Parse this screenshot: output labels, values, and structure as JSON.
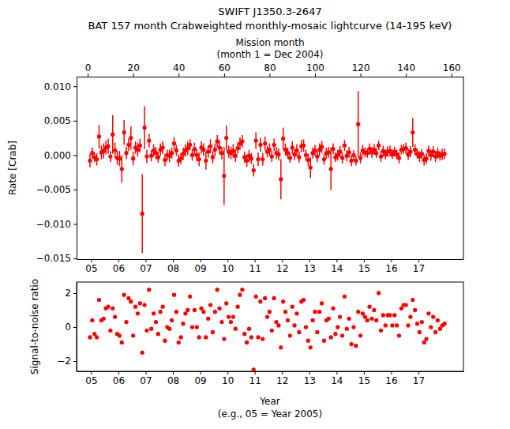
{
  "chart_data": [
    {
      "type": "scatter",
      "title": "SWIFT J1350.3-2647",
      "subtitle": "BAT 157 month Crabweighted monthly-mosaic lightcurve (14-195 keV)",
      "xlabel": "Mission month",
      "xlabel_note": "(month 1 = Dec 2004)",
      "ylabel": "Rate [Crab]",
      "color": "#ff0000",
      "marker": "circle",
      "xlim": [
        -4.9,
        165.3
      ],
      "xticks": [
        0,
        20,
        40,
        60,
        80,
        100,
        120,
        140,
        160
      ],
      "x2lim": [
        4.467,
        18.65
      ],
      "x2ticks": [
        {
          "value": 5,
          "label": "05"
        },
        {
          "value": 6,
          "label": "06"
        },
        {
          "value": 7,
          "label": "07"
        },
        {
          "value": 8,
          "label": "08"
        },
        {
          "value": 9,
          "label": "09"
        },
        {
          "value": 10,
          "label": "10"
        },
        {
          "value": 11,
          "label": "11"
        },
        {
          "value": 12,
          "label": "12"
        },
        {
          "value": 13,
          "label": "13"
        },
        {
          "value": 14,
          "label": "14"
        },
        {
          "value": 15,
          "label": "15"
        },
        {
          "value": 16,
          "label": "16"
        },
        {
          "value": 17,
          "label": "17"
        }
      ],
      "ylim": [
        -0.0151,
        0.0114
      ],
      "yticks": [
        {
          "value": -0.015,
          "label": "−0.015"
        },
        {
          "value": -0.01,
          "label": "−0.010"
        },
        {
          "value": -0.005,
          "label": "−0.005"
        },
        {
          "value": 0,
          "label": "0.000"
        },
        {
          "value": 0.005,
          "label": "0.005"
        },
        {
          "value": 0.01,
          "label": "0.010"
        }
      ],
      "x": [
        1,
        2,
        3,
        4,
        5,
        6,
        7,
        8,
        9,
        10,
        11,
        12,
        13,
        14,
        15,
        16,
        17,
        18,
        19,
        20,
        21,
        22,
        23,
        24,
        25,
        26,
        27,
        28,
        29,
        30,
        31,
        32,
        33,
        34,
        35,
        36,
        37,
        38,
        39,
        40,
        41,
        42,
        43,
        44,
        45,
        46,
        47,
        48,
        49,
        50,
        51,
        52,
        53,
        54,
        55,
        56,
        57,
        58,
        59,
        60,
        61,
        62,
        63,
        64,
        65,
        66,
        67,
        68,
        69,
        70,
        71,
        72,
        73,
        74,
        75,
        76,
        77,
        78,
        79,
        80,
        81,
        82,
        83,
        84,
        85,
        86,
        87,
        88,
        89,
        90,
        91,
        92,
        93,
        94,
        95,
        96,
        97,
        98,
        99,
        100,
        101,
        102,
        103,
        104,
        105,
        106,
        107,
        108,
        109,
        110,
        111,
        112,
        113,
        114,
        115,
        116,
        117,
        118,
        119,
        120,
        121,
        122,
        123,
        124,
        125,
        126,
        127,
        128,
        129,
        130,
        131,
        132,
        133,
        134,
        135,
        136,
        137,
        138,
        139,
        140,
        141,
        142,
        143,
        144,
        145,
        146,
        147,
        148,
        149,
        150,
        151,
        152,
        153,
        154,
        155,
        156,
        157
      ],
      "values": [
        -0.0008,
        0.0003,
        -0.0003,
        -0.0006,
        0.0027,
        0.0004,
        0.0006,
        0.0011,
        0.0013,
        -0.0002,
        0.003,
        0.0007,
        -0.0004,
        -0.0005,
        -0.002,
        0.0033,
        0.0003,
        0.0015,
        0.0025,
        -0.0005,
        0.0011,
        0.0008,
        0.0014,
        -0.0085,
        0.004,
        -0.0002,
        0.0021,
        -0.0001,
        0.0007,
        0.0003,
        -0.0003,
        0.0008,
        0.0011,
        -0.0007,
        0,
        -0.0001,
        0.0003,
        0.0017,
        0.0007,
        -0.0008,
        -0.0005,
        0.0002,
        0.0007,
        0.001,
        0.0015,
        0,
        0.0009,
        0,
        -0.0006,
        0.0011,
        0.0008,
        -0.0008,
        0.0005,
        0.0013,
        -0.0003,
        0.0008,
        0.002,
        0.0011,
        0.0003,
        -0.003,
        0.0025,
        0.0005,
        0.0003,
        0.0006,
        -0.0001,
        0.001,
        0.0017,
        0.002,
        -0.0003,
        -0.0008,
        -0.0001,
        -0.0005,
        -0.0022,
        0.0021,
        -0.0006,
        0.0015,
        -0.0006,
        0.0017,
        0.0005,
        0.0008,
        -0.0002,
        0.0015,
        0.0003,
        0.0001,
        -0.0035,
        0.0024,
        0.0008,
        0.0003,
        -0.0004,
        0.0011,
        0.0001,
        0.0007,
        -0.0003,
        0.0013,
        0.0014,
        0,
        -0.0007,
        -0.0018,
        0.0003,
        0.0007,
        -0.0002,
        0.0008,
        0.0012,
        -0.0006,
        0.0003,
        0.0004,
        -0.002,
        0.0009,
        -0.0003,
        0,
        0.0005,
        -0.0004,
        0.0014,
        -0.0001,
        0.0004,
        -0.0008,
        0,
        -0.0008,
        0.0045,
        -0.0004,
        0.0007,
        0.0004,
        0.0003,
        0.0009,
        0.0004,
        0.0008,
        0.0003,
        0.0014,
        -0.0002,
        0.0006,
        0.0001,
        0.0005,
        0.0006,
        0.0001,
        0.0005,
        0.0001,
        -0.0004,
        0.0008,
        0.0009,
        0.001,
        0.0001,
        0.0005,
        0.0033,
        0.0008,
        0.0002,
        -0.0002,
        0.0002,
        -0.0007,
        -0.0005,
        0.0006,
        0,
        0.0005,
        -0.0002,
        0.0003,
        -0.0001,
        0.0001,
        0.0002
      ],
      "errors": [
        0.001,
        0.0008,
        0.0007,
        0.0009,
        0.0017,
        0.001,
        0.0011,
        0.001,
        0.0011,
        0.0008,
        0.0028,
        0.0011,
        0.001,
        0.0011,
        0.002,
        0.0018,
        0.0009,
        0.0009,
        0.0017,
        0.001,
        0.0009,
        0.001,
        0.001,
        0.0057,
        0.0031,
        0.001,
        0.001,
        0.0008,
        0.0009,
        0.0009,
        0.0008,
        0.0009,
        0.0009,
        0.0009,
        0.0008,
        0.0009,
        0.0008,
        0.0009,
        0.0008,
        0.0009,
        0.0008,
        0.0009,
        0.0009,
        0.001,
        0.0008,
        0.0008,
        0.0009,
        0.0009,
        0.001,
        0.0009,
        0.0009,
        0.0013,
        0.0009,
        0.001,
        0.0009,
        0.0009,
        0.0009,
        0.001,
        0.0009,
        0.0042,
        0.0018,
        0.0009,
        0.0009,
        0.001,
        0.0009,
        0.0008,
        0.0009,
        0.0009,
        0.0008,
        0.0009,
        0.0009,
        0.0008,
        0.0009,
        0.0012,
        0.001,
        0.001,
        0.0009,
        0.001,
        0.0008,
        0.0009,
        0.0008,
        0.0009,
        0.0009,
        0.0009,
        0.0029,
        0.0016,
        0.0009,
        0.0008,
        0.0007,
        0.0009,
        0.0008,
        0.0009,
        0.0008,
        0.0009,
        0.0009,
        0.0008,
        0.0009,
        0.0015,
        0.0008,
        0.0008,
        0.0008,
        0.0009,
        0.0009,
        0.0008,
        0.0008,
        0.0008,
        0.0031,
        0.0008,
        0.0007,
        0.0008,
        0.0008,
        0.0008,
        0.0008,
        0.0008,
        0.0008,
        0.0008,
        0.0007,
        0.0007,
        0.0048,
        0.0008,
        0.0008,
        0.0007,
        0.0007,
        0.0008,
        0.0008,
        0.0008,
        0.0007,
        0.0007,
        0.0008,
        0.0008,
        0.0007,
        0.0008,
        0.0008,
        0.0007,
        0.0007,
        0.0007,
        0.0008,
        0.0007,
        0.0007,
        0.0008,
        0.0008,
        0.0008,
        0.0021,
        0.0008,
        0.0007,
        0.0008,
        0.0007,
        0.0008,
        0.0008,
        0.0008,
        0.0008,
        0.0008,
        0.0008,
        0.0008,
        0.0007,
        0.0008,
        0.0008
      ]
    },
    {
      "type": "scatter",
      "xlabel": "Year",
      "xlabel_note": "(e.g., 05 = Year 2005)",
      "ylabel": "Signal-to-noise ratio",
      "color": "#ff0000",
      "marker": "circle",
      "xlim": [
        4.467,
        18.65
      ],
      "xticks": [
        {
          "value": 5,
          "label": "05"
        },
        {
          "value": 6,
          "label": "06"
        },
        {
          "value": 7,
          "label": "07"
        },
        {
          "value": 8,
          "label": "08"
        },
        {
          "value": 9,
          "label": "09"
        },
        {
          "value": 10,
          "label": "10"
        },
        {
          "value": 11,
          "label": "11"
        },
        {
          "value": 12,
          "label": "12"
        },
        {
          "value": 13,
          "label": "13"
        },
        {
          "value": 14,
          "label": "14"
        },
        {
          "value": 15,
          "label": "15"
        },
        {
          "value": 16,
          "label": "16"
        },
        {
          "value": 17,
          "label": "17"
        }
      ],
      "ylim": [
        -2.6,
        2.65
      ],
      "yticks": [
        {
          "value": -2,
          "label": "−2"
        },
        0,
        2
      ],
      "x": [
        4.958,
        5.042,
        5.125,
        5.208,
        5.292,
        5.375,
        5.458,
        5.542,
        5.625,
        5.708,
        5.792,
        5.875,
        5.958,
        6.042,
        6.125,
        6.208,
        6.292,
        6.375,
        6.458,
        6.542,
        6.625,
        6.708,
        6.792,
        6.875,
        6.958,
        7.042,
        7.125,
        7.208,
        7.292,
        7.375,
        7.458,
        7.542,
        7.625,
        7.708,
        7.792,
        7.875,
        7.958,
        8.042,
        8.125,
        8.208,
        8.292,
        8.375,
        8.458,
        8.542,
        8.625,
        8.708,
        8.792,
        8.875,
        8.958,
        9.042,
        9.125,
        9.208,
        9.292,
        9.375,
        9.458,
        9.542,
        9.625,
        9.708,
        9.792,
        9.875,
        9.958,
        10.042,
        10.125,
        10.208,
        10.292,
        10.375,
        10.458,
        10.542,
        10.625,
        10.708,
        10.792,
        10.875,
        10.958,
        11.042,
        11.125,
        11.208,
        11.292,
        11.375,
        11.458,
        11.542,
        11.625,
        11.708,
        11.792,
        11.875,
        11.958,
        12.042,
        12.125,
        12.208,
        12.292,
        12.375,
        12.458,
        12.542,
        12.625,
        12.708,
        12.792,
        12.875,
        12.958,
        13.042,
        13.125,
        13.208,
        13.292,
        13.375,
        13.458,
        13.542,
        13.625,
        13.708,
        13.792,
        13.875,
        13.958,
        14.042,
        14.125,
        14.208,
        14.292,
        14.375,
        14.458,
        14.542,
        14.625,
        14.708,
        14.792,
        14.875,
        14.958,
        15.042,
        15.125,
        15.208,
        15.292,
        15.375,
        15.458,
        15.542,
        15.625,
        15.708,
        15.792,
        15.875,
        15.958,
        16.042,
        16.125,
        16.208,
        16.292,
        16.375,
        16.458,
        16.542,
        16.625,
        16.708,
        16.792,
        16.875,
        16.958,
        17.042,
        17.125,
        17.208,
        17.292,
        17.375,
        17.458,
        17.542,
        17.625,
        17.708,
        17.792,
        17.875,
        17.958
      ],
      "values": [
        -0.6,
        0.4,
        -0.4,
        -0.6,
        1.6,
        0.4,
        0.5,
        1.1,
        1.2,
        -0.2,
        1.1,
        0.6,
        -0.4,
        -0.5,
        -0.9,
        1.9,
        0.3,
        1.7,
        1.5,
        -0.5,
        1.2,
        0.8,
        1.4,
        -1.5,
        1.3,
        -0.2,
        2.2,
        -0.1,
        0.8,
        0.3,
        -0.4,
        0.9,
        1.2,
        -0.8,
        0,
        -0.1,
        0.4,
        1.9,
        0.9,
        -0.9,
        -0.6,
        0.2,
        0.8,
        1.0,
        1.8,
        0,
        1.0,
        0,
        -0.6,
        1.1,
        0.9,
        -0.6,
        0.5,
        1.3,
        -0.3,
        0.9,
        2.2,
        1.1,
        0.3,
        -0.7,
        1.4,
        0.6,
        0.3,
        0.6,
        -0.1,
        1.2,
        1.9,
        2.2,
        -0.4,
        -0.9,
        -0.1,
        -0.6,
        -2.5,
        1.8,
        -0.6,
        1.5,
        -0.7,
        1.7,
        0.6,
        0.9,
        -0.2,
        1.7,
        0.3,
        0.1,
        -1.2,
        1.5,
        0.9,
        0.4,
        -0.5,
        1.2,
        0.1,
        0.8,
        -0.3,
        1.5,
        1.6,
        0,
        -0.8,
        -1.2,
        0.4,
        0.9,
        -0.3,
        0.9,
        1.4,
        -0.8,
        0.4,
        0.5,
        -0.6,
        1.1,
        -0.4,
        0,
        0.6,
        -0.5,
        1.8,
        -0.1,
        0.5,
        -1.0,
        0,
        -1.1,
        0.9,
        -0.5,
        0.8,
        0.6,
        0.4,
        1.2,
        0.5,
        1.0,
        0.4,
        2.0,
        -0.2,
        0.7,
        0.1,
        0.7,
        0.7,
        0.1,
        0.7,
        0.1,
        -0.5,
        1.1,
        1.3,
        1.3,
        0.1,
        0.6,
        1.6,
        1.0,
        0.2,
        -0.3,
        0.3,
        -0.9,
        -0.7,
        0.8,
        0,
        0.6,
        -0.3,
        0.4,
        -0.1,
        0.1,
        0.2
      ]
    }
  ]
}
